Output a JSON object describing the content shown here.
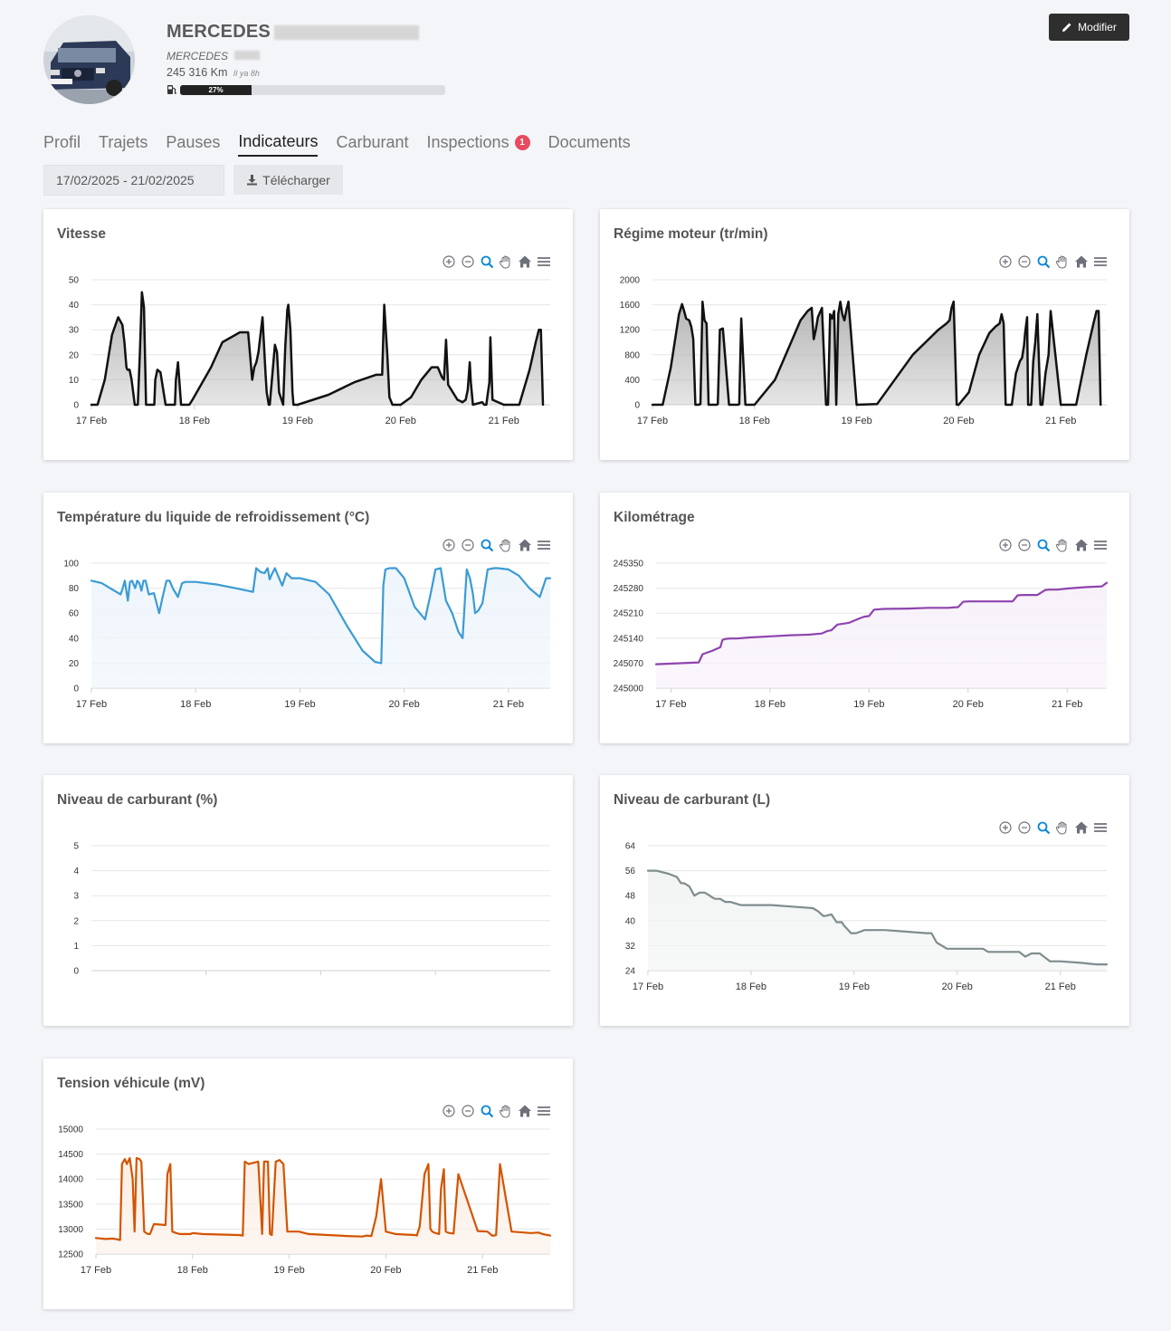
{
  "header": {
    "vehicle_title": "MERCEDES",
    "vehicle_subtitle": "MERCEDES",
    "mileage": "245 316 Km",
    "mileage_ago": "Il ya 8h",
    "fuel_percent_label": "27%",
    "fuel_level": 0.27,
    "edit_label": "Modifier"
  },
  "tabs": [
    {
      "label": "Profil"
    },
    {
      "label": "Trajets"
    },
    {
      "label": "Pauses"
    },
    {
      "label": "Indicateurs",
      "active": true
    },
    {
      "label": "Carburant"
    },
    {
      "label": "Inspections",
      "badge": "1"
    },
    {
      "label": "Documents"
    }
  ],
  "filters": {
    "date_range": "17/02/2025 - 21/02/2025",
    "download_label": "Télécharger"
  },
  "toolbar_icons": [
    "zoom-in-icon",
    "zoom-out-icon",
    "selection-zoom-icon",
    "pan-icon",
    "reset-zoom-icon",
    "menu-icon"
  ],
  "chart_data": [
    {
      "id": "vitesse",
      "type": "area",
      "title": "Vitesse",
      "color": "#111111",
      "fill": "#b5b5b5",
      "ylim": [
        0,
        50
      ],
      "yticks": [
        "0",
        "10",
        "20",
        "30",
        "40",
        "50"
      ],
      "xlim": [
        0,
        4.45
      ],
      "xticks": [
        0,
        1,
        2,
        3,
        4
      ],
      "xtick_labels": [
        "17 Feb",
        "18 Feb",
        "19 Feb",
        "20 Feb",
        "21 Feb"
      ],
      "x": [
        0,
        0.03,
        0.06,
        0.13,
        0.2,
        0.26,
        0.3,
        0.32,
        0.34,
        0.35,
        0.37,
        0.39,
        0.42,
        0.44,
        0.45,
        0.47,
        0.49,
        0.5,
        0.51,
        0.53,
        0.55,
        0.61,
        0.62,
        0.64,
        0.67,
        0.72,
        0.73,
        0.81,
        0.82,
        0.84,
        0.87,
        0.95,
        0.98,
        1.16,
        1.27,
        1.44,
        1.52,
        1.56,
        1.58,
        1.6,
        1.62,
        1.66,
        1.69,
        1.7,
        1.72,
        1.73,
        1.78,
        1.8,
        1.82,
        1.86,
        1.88,
        1.9,
        1.91,
        1.93,
        1.95,
        1.96,
        2.0,
        2.3,
        2.55,
        2.76,
        2.82,
        2.84,
        2.87,
        2.89,
        2.92,
        3.0,
        3.1,
        3.2,
        3.3,
        3.36,
        3.4,
        3.42,
        3.44,
        3.46,
        3.55,
        3.6,
        3.63,
        3.65,
        3.67,
        3.68,
        3.7,
        3.79,
        3.81,
        3.83,
        3.84,
        3.86,
        3.87,
        3.89,
        4.0,
        4.15,
        4.25,
        4.31,
        4.34,
        4.36,
        4.38
      ],
      "y": [
        0,
        0,
        0,
        10,
        28,
        35,
        32,
        25,
        15,
        14,
        14,
        10,
        0,
        0,
        0,
        20,
        45,
        42,
        39,
        0,
        0,
        0,
        10,
        14,
        13,
        0,
        0,
        0,
        10,
        17,
        0,
        0,
        2,
        15,
        25,
        29,
        29,
        10,
        15,
        17,
        21,
        35,
        12,
        5,
        0,
        0,
        24,
        21,
        5,
        0,
        23,
        38,
        40,
        30,
        5,
        0,
        0,
        4,
        9,
        12,
        12,
        40,
        20,
        3,
        0,
        0,
        3,
        10,
        15,
        15,
        11,
        10,
        26,
        8,
        2,
        1,
        2,
        6,
        17,
        9,
        0,
        1,
        0,
        0,
        3,
        9,
        27,
        2,
        0,
        0,
        14,
        25,
        30,
        30,
        0
      ]
    },
    {
      "id": "regime",
      "type": "area",
      "title": "Régime moteur (tr/min)",
      "color": "#111111",
      "fill": "#b5b5b5",
      "ylim": [
        0,
        2000
      ],
      "yticks": [
        "0",
        "400",
        "800",
        "1200",
        "1600",
        "2000"
      ],
      "xlim": [
        0,
        4.45
      ],
      "xticks": [
        0,
        1,
        2,
        3,
        4
      ],
      "xtick_labels": [
        "17 Feb",
        "18 Feb",
        "19 Feb",
        "20 Feb",
        "21 Feb"
      ],
      "x": [
        0,
        0.05,
        0.1,
        0.18,
        0.26,
        0.29,
        0.31,
        0.33,
        0.36,
        0.38,
        0.4,
        0.42,
        0.44,
        0.45,
        0.47,
        0.49,
        0.51,
        0.53,
        0.55,
        0.63,
        0.64,
        0.66,
        0.69,
        0.75,
        0.76,
        0.84,
        0.85,
        0.87,
        0.91,
        0.95,
        1.0,
        1.2,
        1.45,
        1.52,
        1.56,
        1.58,
        1.6,
        1.62,
        1.66,
        1.7,
        1.72,
        1.74,
        1.76,
        1.78,
        1.8,
        1.82,
        1.84,
        1.86,
        1.88,
        1.9,
        1.92,
        1.94,
        2.0,
        2.2,
        2.55,
        2.8,
        2.88,
        2.91,
        2.93,
        2.95,
        2.98,
        3.0,
        3.1,
        3.2,
        3.3,
        3.36,
        3.4,
        3.42,
        3.44,
        3.46,
        3.52,
        3.56,
        3.6,
        3.62,
        3.64,
        3.65,
        3.67,
        3.68,
        3.71,
        3.73,
        3.75,
        3.77,
        3.8,
        3.81,
        3.82,
        3.85,
        3.88,
        3.9,
        4.0,
        4.15,
        4.25,
        4.32,
        4.35,
        4.37,
        4.39
      ],
      "y": [
        0,
        0,
        0,
        600,
        1450,
        1610,
        1500,
        1380,
        1350,
        1250,
        1050,
        0,
        0,
        0,
        10,
        1650,
        1350,
        1300,
        0,
        0,
        10,
        1200,
        1220,
        0,
        0,
        0,
        10,
        1380,
        0,
        0,
        0,
        400,
        1350,
        1500,
        1550,
        1050,
        1200,
        1400,
        1550,
        0,
        0,
        1450,
        1380,
        1500,
        0,
        1450,
        1650,
        1450,
        1350,
        1520,
        1650,
        1250,
        0,
        10,
        800,
        1200,
        1300,
        1350,
        1550,
        1650,
        0,
        0,
        200,
        800,
        1150,
        1250,
        1300,
        1450,
        1300,
        0,
        0,
        500,
        700,
        750,
        950,
        1150,
        1400,
        0,
        0,
        700,
        1000,
        1450,
        0,
        0,
        0,
        500,
        800,
        1500,
        0,
        0,
        800,
        1300,
        1500,
        1500,
        0
      ]
    },
    {
      "id": "temperature",
      "type": "line",
      "title": "Température du liquide de refroidissement (°C)",
      "color": "#3b9bd4",
      "fill": "#eef5fb",
      "ylim": [
        0,
        100
      ],
      "yticks": [
        "0",
        "20",
        "40",
        "60",
        "80",
        "100"
      ],
      "xlim": [
        0,
        4.4
      ],
      "xticks": [
        0,
        1,
        2,
        3,
        4
      ],
      "xtick_labels": [
        "17 Feb",
        "18 Feb",
        "19 Feb",
        "20 Feb",
        "21 Feb"
      ],
      "x": [
        0,
        0.1,
        0.2,
        0.28,
        0.3,
        0.32,
        0.35,
        0.37,
        0.39,
        0.42,
        0.44,
        0.46,
        0.48,
        0.5,
        0.52,
        0.55,
        0.6,
        0.65,
        0.68,
        0.72,
        0.75,
        0.78,
        0.83,
        0.87,
        0.9,
        1.0,
        1.2,
        1.38,
        1.55,
        1.58,
        1.62,
        1.66,
        1.69,
        1.71,
        1.73,
        1.76,
        1.8,
        1.83,
        1.87,
        1.92,
        2.0,
        2.05,
        2.15,
        2.28,
        2.45,
        2.6,
        2.72,
        2.78,
        2.8,
        2.82,
        2.86,
        2.92,
        3.0,
        3.1,
        3.2,
        3.26,
        3.3,
        3.35,
        3.4,
        3.46,
        3.52,
        3.56,
        3.6,
        3.63,
        3.66,
        3.68,
        3.71,
        3.75,
        3.8,
        3.86,
        3.9,
        4.0,
        4.1,
        4.2,
        4.3,
        4.36,
        4.4
      ],
      "y": [
        86,
        84,
        79,
        75,
        80,
        86,
        70,
        85,
        86,
        80,
        86,
        84,
        78,
        86,
        86,
        75,
        76,
        60,
        72,
        86,
        86,
        80,
        73,
        84,
        85,
        85,
        83,
        80,
        77,
        96,
        93,
        92,
        96,
        87,
        91,
        96,
        88,
        82,
        92,
        88,
        88,
        87,
        85,
        75,
        50,
        30,
        21,
        20,
        82,
        95,
        96,
        96,
        88,
        65,
        55,
        78,
        95,
        96,
        70,
        60,
        45,
        40,
        95,
        88,
        75,
        60,
        62,
        68,
        95,
        96,
        96,
        95,
        90,
        80,
        73,
        88,
        88
      ]
    },
    {
      "id": "kilometrage",
      "type": "line",
      "title": "Kilométrage",
      "color": "#8e44ad",
      "fill": "#f7f1fa",
      "ylim": [
        245000,
        245350
      ],
      "yticks": [
        "245000",
        "245070",
        "245140",
        "245210",
        "245280",
        "245350"
      ],
      "xlim": [
        -0.15,
        4.4
      ],
      "xticks": [
        0,
        1,
        2,
        3,
        4
      ],
      "xtick_labels": [
        "17 Feb",
        "18 Feb",
        "19 Feb",
        "20 Feb",
        "21 Feb"
      ],
      "x": [
        -0.15,
        0.28,
        0.32,
        0.42,
        0.46,
        0.5,
        0.52,
        0.55,
        0.6,
        0.66,
        0.8,
        1.0,
        1.2,
        1.4,
        1.52,
        1.58,
        1.62,
        1.68,
        1.8,
        1.9,
        1.95,
        2.0,
        2.05,
        2.15,
        2.4,
        2.6,
        2.8,
        2.9,
        2.95,
        3.0,
        3.2,
        3.45,
        3.5,
        3.55,
        3.7,
        3.78,
        3.82,
        3.9,
        4.0,
        4.2,
        4.35,
        4.4
      ],
      "y": [
        245067,
        245072,
        245095,
        245105,
        245110,
        245115,
        245135,
        245138,
        245139,
        245139,
        245142,
        245145,
        245148,
        245150,
        245153,
        245160,
        245162,
        245178,
        245183,
        245195,
        245200,
        245202,
        245220,
        245222,
        245223,
        245225,
        245225,
        245227,
        245242,
        245243,
        245243,
        245243,
        245260,
        245261,
        245261,
        245275,
        245276,
        245276,
        245279,
        245283,
        245285,
        245295
      ]
    },
    {
      "id": "carburant_pct",
      "type": "line",
      "title": "Niveau de carburant (%)",
      "color": "#8e8e8e",
      "fill": "none",
      "ylim": [
        0,
        5
      ],
      "yticks": [
        "0",
        "1",
        "2",
        "3",
        "4",
        "5"
      ],
      "xlim": [
        0,
        4
      ],
      "xticks": [
        1,
        2,
        3
      ],
      "xtick_labels": [
        "",
        "",
        ""
      ],
      "x": [],
      "y": []
    },
    {
      "id": "carburant_l",
      "type": "line",
      "title": "Niveau de carburant (L)",
      "color": "#7f8c8d",
      "fill": "#f2f4f4",
      "ylim": [
        24,
        64
      ],
      "yticks": [
        "24",
        "32",
        "40",
        "48",
        "56",
        "64"
      ],
      "xlim": [
        0,
        4.45
      ],
      "xticks": [
        0,
        1,
        2,
        3,
        4
      ],
      "xtick_labels": [
        "17 Feb",
        "18 Feb",
        "19 Feb",
        "20 Feb",
        "21 Feb"
      ],
      "x": [
        0,
        0.08,
        0.2,
        0.28,
        0.32,
        0.35,
        0.4,
        0.45,
        0.5,
        0.55,
        0.6,
        0.62,
        0.65,
        0.7,
        0.75,
        0.8,
        0.85,
        0.9,
        1.0,
        1.2,
        1.4,
        1.6,
        1.65,
        1.7,
        1.72,
        1.78,
        1.83,
        1.88,
        1.9,
        1.97,
        2.02,
        2.1,
        2.3,
        2.5,
        2.7,
        2.75,
        2.8,
        2.9,
        3.1,
        3.25,
        3.3,
        3.4,
        3.6,
        3.66,
        3.72,
        3.8,
        3.9,
        4.0,
        4.2,
        4.35,
        4.45
      ],
      "y": [
        56,
        56,
        55,
        54,
        52,
        52,
        51,
        48,
        49,
        49,
        48,
        47.5,
        47,
        47,
        46,
        46,
        45.5,
        45,
        45,
        45,
        44.5,
        44,
        43,
        41.5,
        41.5,
        42,
        39.5,
        39.5,
        38.5,
        36,
        36,
        37,
        37,
        36.5,
        36,
        36,
        33,
        31,
        31,
        31,
        30,
        30,
        30,
        28.5,
        29.5,
        29.5,
        27,
        27,
        26.5,
        26,
        26
      ]
    },
    {
      "id": "tension",
      "type": "line",
      "title": "Tension véhicule (mV)",
      "color": "#d35400",
      "fill": "#fbefe7",
      "ylim": [
        12500,
        15000
      ],
      "yticks": [
        "12500",
        "13000",
        "13500",
        "14000",
        "14500",
        "15000"
      ],
      "xlim": [
        0,
        4.7
      ],
      "xticks": [
        0,
        1,
        2,
        3,
        4
      ],
      "xtick_labels": [
        "17 Feb",
        "18 Feb",
        "19 Feb",
        "20 Feb",
        "21 Feb"
      ],
      "x": [
        0,
        0.1,
        0.18,
        0.25,
        0.27,
        0.3,
        0.32,
        0.35,
        0.38,
        0.4,
        0.42,
        0.45,
        0.47,
        0.5,
        0.52,
        0.54,
        0.56,
        0.6,
        0.72,
        0.74,
        0.77,
        0.79,
        0.83,
        0.87,
        0.94,
        0.96,
        0.98,
        1.0,
        1.1,
        1.3,
        1.48,
        1.52,
        1.54,
        1.58,
        1.68,
        1.72,
        1.74,
        1.78,
        1.8,
        1.82,
        1.86,
        1.9,
        1.94,
        1.98,
        2.0,
        2.02,
        2.1,
        2.2,
        2.4,
        2.6,
        2.76,
        2.8,
        2.85,
        2.9,
        2.95,
        3.0,
        3.1,
        3.2,
        3.3,
        3.32,
        3.35,
        3.4,
        3.44,
        3.46,
        3.48,
        3.5,
        3.55,
        3.57,
        3.6,
        3.62,
        3.64,
        3.66,
        3.7,
        3.75,
        3.95,
        4.05,
        4.1,
        4.12,
        4.14,
        4.18,
        4.3,
        4.5,
        4.58,
        4.62,
        4.7
      ],
      "y": [
        12820,
        12800,
        12810,
        12780,
        14300,
        14400,
        14300,
        14420,
        14000,
        12950,
        14420,
        14400,
        14350,
        12950,
        12920,
        12900,
        12900,
        13100,
        13080,
        14100,
        14300,
        12950,
        12920,
        12900,
        12900,
        12900,
        12900,
        12920,
        12900,
        12890,
        12880,
        12870,
        14350,
        14300,
        14350,
        12900,
        14350,
        14350,
        12900,
        12880,
        14350,
        14380,
        14300,
        12950,
        12950,
        12950,
        12950,
        12900,
        12880,
        12860,
        12850,
        12870,
        12860,
        13250,
        14000,
        12950,
        12900,
        12890,
        12880,
        12870,
        13050,
        14100,
        14300,
        13000,
        12950,
        12930,
        12900,
        13800,
        14200,
        12950,
        12930,
        12920,
        12910,
        14100,
        12960,
        12950,
        12870,
        12870,
        12880,
        14300,
        12950,
        12920,
        12930,
        12900,
        12870
      ]
    }
  ]
}
